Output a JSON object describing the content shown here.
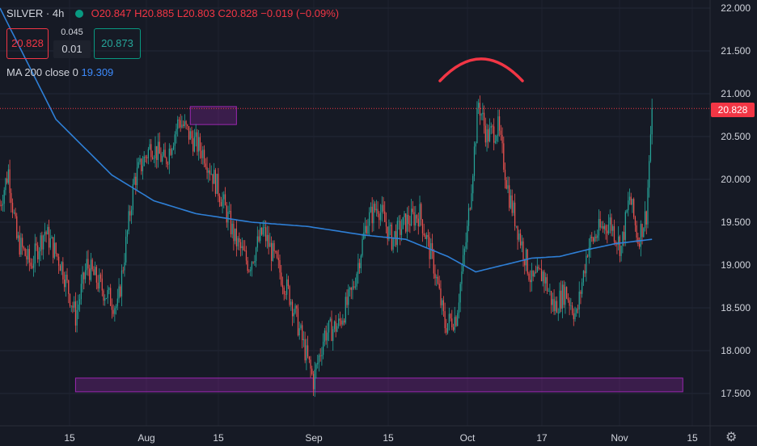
{
  "header": {
    "symbol": "SILVER",
    "interval": "4h",
    "open": "O20.847",
    "high": "H20.885",
    "low": "L20.803",
    "close": "C20.828",
    "change": "−0.019 (−0.09%)"
  },
  "trade": {
    "sell_price": "20.828",
    "spread": "0.045",
    "quantity": "0.01",
    "buy_price": "20.873"
  },
  "indicator": {
    "label": "MA 200 close 0",
    "value": "19.309"
  },
  "colors": {
    "up": "#26a69a",
    "down": "#ef5350",
    "ma": "#2e7fd6",
    "zone": "#9c27b0",
    "arc": "#f23645",
    "background": "#161a25"
  },
  "chart_data": {
    "type": "candlestick",
    "y_ticks": [
      "22.000",
      "21.500",
      "21.000",
      "20.500",
      "20.000",
      "19.500",
      "19.000",
      "18.500",
      "18.000",
      "17.500"
    ],
    "ylim": [
      17.2,
      22.05
    ],
    "x_ticks": [
      "15",
      "Aug",
      "15",
      "Sep",
      "15",
      "Oct",
      "17",
      "Nov",
      "15"
    ],
    "last_price": "20.828",
    "price_path": [
      {
        "t": 0,
        "p": 19.7
      },
      {
        "t": 6,
        "p": 20.1
      },
      {
        "t": 12,
        "p": 19.3
      },
      {
        "t": 22,
        "p": 19.0
      },
      {
        "t": 32,
        "p": 19.4
      },
      {
        "t": 44,
        "p": 19.0
      },
      {
        "t": 54,
        "p": 18.4
      },
      {
        "t": 62,
        "p": 19.0
      },
      {
        "t": 74,
        "p": 18.7
      },
      {
        "t": 84,
        "p": 18.5
      },
      {
        "t": 96,
        "p": 20.0
      },
      {
        "t": 108,
        "p": 20.4
      },
      {
        "t": 118,
        "p": 20.2
      },
      {
        "t": 128,
        "p": 20.7
      },
      {
        "t": 136,
        "p": 20.5
      },
      {
        "t": 146,
        "p": 20.3
      },
      {
        "t": 158,
        "p": 19.8
      },
      {
        "t": 168,
        "p": 19.3
      },
      {
        "t": 178,
        "p": 19.0
      },
      {
        "t": 188,
        "p": 19.4
      },
      {
        "t": 198,
        "p": 19.0
      },
      {
        "t": 208,
        "p": 18.6
      },
      {
        "t": 218,
        "p": 18.0
      },
      {
        "t": 224,
        "p": 17.65
      },
      {
        "t": 232,
        "p": 18.2
      },
      {
        "t": 242,
        "p": 18.3
      },
      {
        "t": 252,
        "p": 18.7
      },
      {
        "t": 262,
        "p": 19.5
      },
      {
        "t": 270,
        "p": 19.7
      },
      {
        "t": 280,
        "p": 19.3
      },
      {
        "t": 290,
        "p": 19.5
      },
      {
        "t": 300,
        "p": 19.6
      },
      {
        "t": 310,
        "p": 19.0
      },
      {
        "t": 318,
        "p": 18.3
      },
      {
        "t": 326,
        "p": 18.4
      },
      {
        "t": 334,
        "p": 19.4
      },
      {
        "t": 342,
        "p": 20.9
      },
      {
        "t": 348,
        "p": 20.5
      },
      {
        "t": 356,
        "p": 20.6
      },
      {
        "t": 364,
        "p": 19.8
      },
      {
        "t": 372,
        "p": 19.3
      },
      {
        "t": 380,
        "p": 18.8
      },
      {
        "t": 388,
        "p": 18.9
      },
      {
        "t": 396,
        "p": 18.5
      },
      {
        "t": 404,
        "p": 18.7
      },
      {
        "t": 412,
        "p": 18.4
      },
      {
        "t": 420,
        "p": 19.2
      },
      {
        "t": 428,
        "p": 19.4
      },
      {
        "t": 436,
        "p": 19.5
      },
      {
        "t": 444,
        "p": 19.2
      },
      {
        "t": 450,
        "p": 19.8
      },
      {
        "t": 456,
        "p": 19.3
      },
      {
        "t": 462,
        "p": 19.6
      },
      {
        "t": 466,
        "p": 20.83
      }
    ],
    "moving_average": [
      {
        "t": 0,
        "p": 22.0
      },
      {
        "t": 40,
        "p": 20.7
      },
      {
        "t": 80,
        "p": 20.05
      },
      {
        "t": 110,
        "p": 19.75
      },
      {
        "t": 140,
        "p": 19.6
      },
      {
        "t": 180,
        "p": 19.5
      },
      {
        "t": 220,
        "p": 19.45
      },
      {
        "t": 260,
        "p": 19.35
      },
      {
        "t": 290,
        "p": 19.3
      },
      {
        "t": 320,
        "p": 19.1
      },
      {
        "t": 340,
        "p": 18.92
      },
      {
        "t": 360,
        "p": 19.0
      },
      {
        "t": 380,
        "p": 19.08
      },
      {
        "t": 400,
        "p": 19.1
      },
      {
        "t": 420,
        "p": 19.18
      },
      {
        "t": 440,
        "p": 19.25
      },
      {
        "t": 466,
        "p": 19.3
      }
    ],
    "zones": [
      {
        "from_t": 136,
        "to_t": 169,
        "low": 20.64,
        "high": 20.85
      },
      {
        "from_t": 54,
        "to_t": 488,
        "low": 17.52,
        "high": 17.68
      }
    ]
  }
}
